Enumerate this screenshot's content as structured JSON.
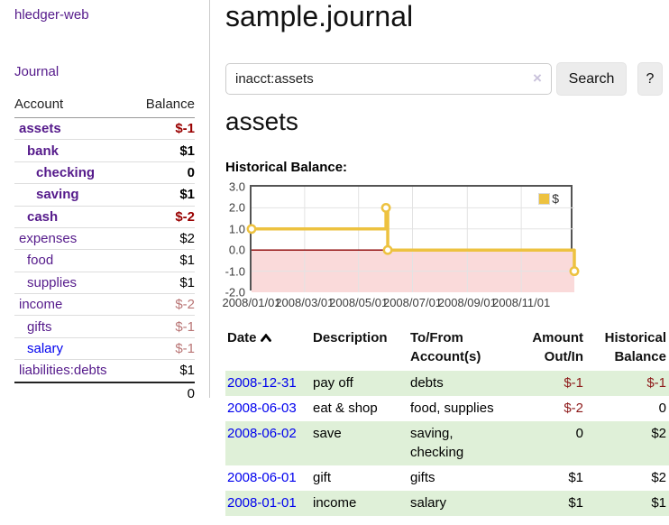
{
  "app": {
    "brand": "hledger-web"
  },
  "colors": {
    "link_purple": "#551a8b",
    "link_blue": "#0000ee",
    "negative_bold": "#990000",
    "negative_soft": "#b97575",
    "negative_table": "#8d1a1a",
    "row_highlight_green": "#dff0d8",
    "button_bg": "#ececec"
  },
  "sidebar": {
    "journal_link": "Journal",
    "accounts": {
      "header_account": "Account",
      "header_balance": "Balance",
      "rows": [
        {
          "name": "assets",
          "indent": 1,
          "bold": true,
          "balance": "$-1",
          "neg": "bold"
        },
        {
          "name": "bank",
          "indent": 2,
          "bold": true,
          "balance": "$1"
        },
        {
          "name": "checking",
          "indent": 3,
          "bold": true,
          "balance": "0"
        },
        {
          "name": "saving",
          "indent": 3,
          "bold": true,
          "balance": "$1"
        },
        {
          "name": "cash",
          "indent": 2,
          "bold": true,
          "balance": "$-2",
          "neg": "bold"
        },
        {
          "name": "expenses",
          "indent": 1,
          "bold": false,
          "balance": "$2"
        },
        {
          "name": "food",
          "indent": 2,
          "bold": false,
          "balance": "$1"
        },
        {
          "name": "supplies",
          "indent": 2,
          "bold": false,
          "balance": "$1"
        },
        {
          "name": "income",
          "indent": 1,
          "bold": false,
          "balance": "$-2",
          "neg": "soft"
        },
        {
          "name": "gifts",
          "indent": 2,
          "bold": false,
          "balance": "$-1",
          "neg": "soft"
        },
        {
          "name": "salary",
          "indent": 2,
          "bold": false,
          "balance": "$-1",
          "neg": "soft",
          "link_style": "blue"
        },
        {
          "name": "liabilities:debts",
          "indent": 1,
          "bold": false,
          "balance": "$1"
        }
      ],
      "total": "0"
    }
  },
  "main": {
    "title": "sample.journal",
    "search": {
      "value": "inacct:assets",
      "clear_icon": "×",
      "search_button": "Search",
      "help_button": "?"
    },
    "account_heading": "assets",
    "section_label": "Historical Balance:"
  },
  "chart_data": {
    "type": "line",
    "step": true,
    "title": "Historical Balance",
    "series": [
      {
        "name": "$",
        "color": "#edc240",
        "points": [
          {
            "date": "2008-01-01",
            "value": 1
          },
          {
            "date": "2008-06-01",
            "value": 2
          },
          {
            "date": "2008-06-03",
            "value": 0
          },
          {
            "date": "2008-12-31",
            "value": -1
          }
        ]
      }
    ],
    "x_start": "2008-01-01",
    "x_end": "2008-12-31",
    "ylim": [
      -2,
      3
    ],
    "yticks": [
      "3.0",
      "2.0",
      "1.0",
      "0.0",
      "-1.0",
      "-2.0"
    ],
    "xticks": [
      {
        "label": "2008/01/01",
        "date": "2008-01-01"
      },
      {
        "label": "2008/03/01",
        "date": "2008-03-01"
      },
      {
        "label": "2008/05/01",
        "date": "2008-05-01"
      },
      {
        "label": "2008/07/01",
        "date": "2008-07-01"
      },
      {
        "label": "2008/09/01",
        "date": "2008-09-01"
      },
      {
        "label": "2008/11/01",
        "date": "2008-11-01"
      }
    ],
    "legend": "$",
    "legend_position": "top-right",
    "grid": true,
    "colors": {
      "line": "#edc240",
      "negative_fill": "#fadada",
      "zero_line": "#8b0000",
      "grid": "#e3e3e3",
      "border": "#545454"
    }
  },
  "transactions": {
    "headers": {
      "date": "Date",
      "description": "Description",
      "accounts": "To/From Account(s)",
      "amount": "Amount Out/In",
      "balance": "Historical Balance"
    },
    "sort": {
      "column": "date",
      "direction": "ascending"
    },
    "rows": [
      {
        "date": "2008-12-31",
        "description": "pay off",
        "accounts": "debts",
        "amount": "$-1",
        "amount_neg": true,
        "balance": "$-1",
        "balance_neg": true,
        "highlight": true
      },
      {
        "date": "2008-06-03",
        "description": "eat & shop",
        "accounts": "food, supplies",
        "amount": "$-2",
        "amount_neg": true,
        "balance": "0",
        "balance_neg": false,
        "highlight": false
      },
      {
        "date": "2008-06-02",
        "description": "save",
        "accounts": "saving, checking",
        "amount": "0",
        "amount_neg": false,
        "balance": "$2",
        "balance_neg": false,
        "highlight": true
      },
      {
        "date": "2008-06-01",
        "description": "gift",
        "accounts": "gifts",
        "amount": "$1",
        "amount_neg": false,
        "balance": "$2",
        "balance_neg": false,
        "highlight": false
      },
      {
        "date": "2008-01-01",
        "description": "income",
        "accounts": "salary",
        "amount": "$1",
        "amount_neg": false,
        "balance": "$1",
        "balance_neg": false,
        "highlight": true
      }
    ]
  }
}
